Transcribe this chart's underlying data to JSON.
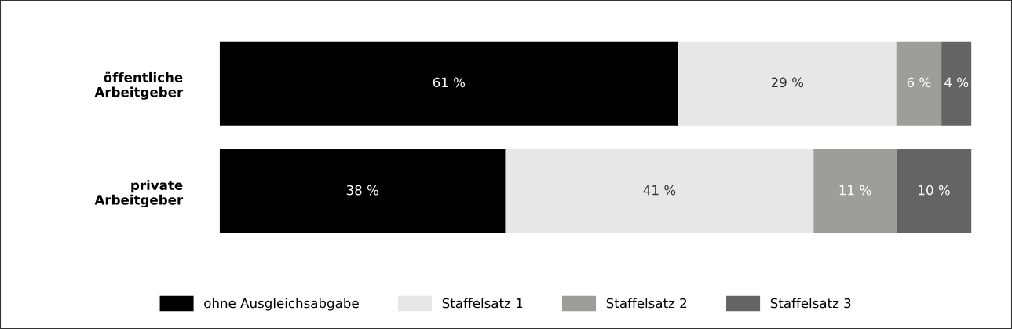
{
  "chart_data": {
    "type": "bar",
    "orientation": "horizontal",
    "stacked": true,
    "categories": [
      "öffentliche\nArbeitgeber",
      "private\nArbeitgeber"
    ],
    "series": [
      {
        "name": "ohne Ausgleichsabgabe",
        "color": "#000000",
        "values": [
          61,
          38
        ],
        "value_labels": [
          "61 %",
          "38 %"
        ]
      },
      {
        "name": "Staffelsatz 1",
        "color": "#e6e7e6",
        "values": [
          29,
          41
        ],
        "value_labels": [
          "29 %",
          "41 %"
        ]
      },
      {
        "name": "Staffelsatz 2",
        "color": "#9d9d9c",
        "values": [
          6,
          11
        ],
        "value_labels": [
          "6 %",
          "11 %"
        ]
      },
      {
        "name": "Staffelsatz 3",
        "color": "#646464",
        "values": [
          4,
          10
        ],
        "value_labels": [
          "4 %",
          "10 %"
        ]
      }
    ],
    "xlim": [
      0,
      100
    ],
    "tick_labels": "y",
    "grid": false,
    "legend": "bottom"
  }
}
